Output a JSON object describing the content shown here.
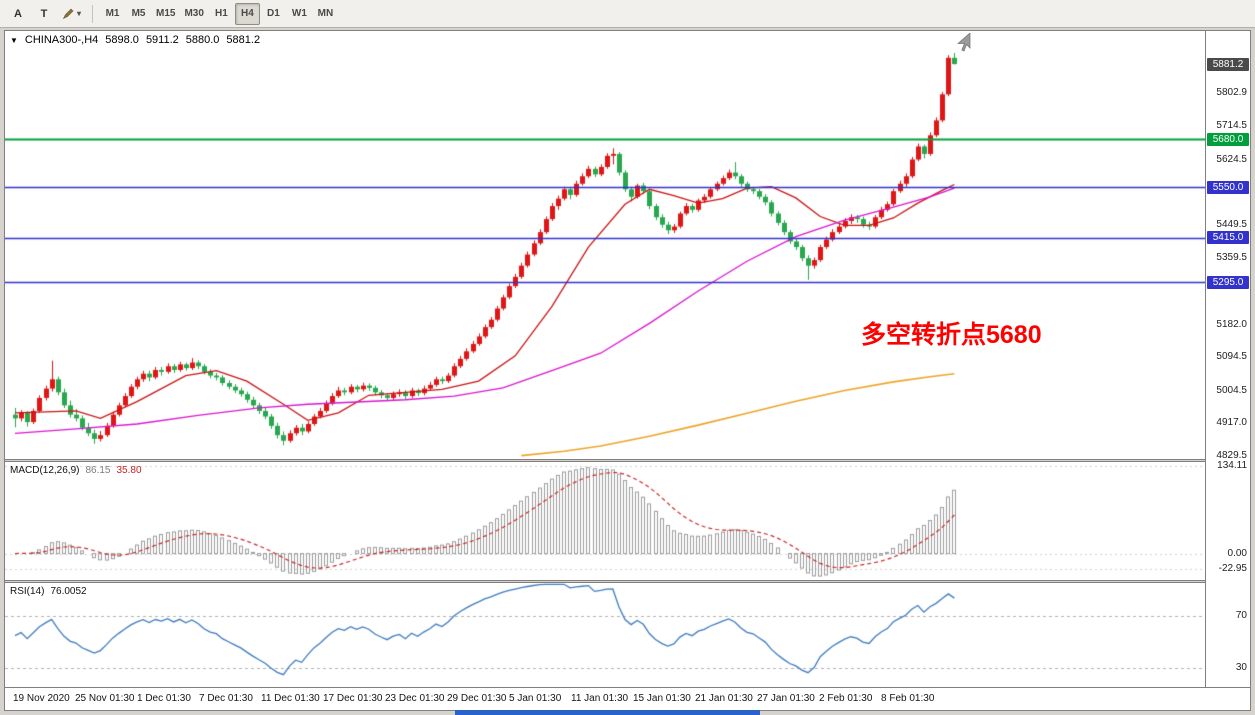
{
  "toolbar": {
    "tool_a_label": "A",
    "tool_t_label": "T",
    "caret_icon": "▾",
    "timeframes": [
      "M1",
      "M5",
      "M15",
      "M30",
      "H1",
      "H4",
      "D1",
      "W1",
      "MN"
    ],
    "active_timeframe": "H4"
  },
  "window_header": {
    "collapse_icon": "▼",
    "symbol_period": "CHINA300-,H4"
  },
  "page": {
    "taskbar_fragment_color": "#2a63c8"
  },
  "chart_data": {
    "type": "candlestick",
    "symbol": "CHINA300-",
    "timeframe": "H4",
    "ohlc_display": {
      "open": "5898.0",
      "high": "5911.2",
      "low": "5880.0",
      "close": "5881.2"
    },
    "ylim": [
      4821,
      5970
    ],
    "y_ticks": [
      "5802.9",
      "5714.5",
      "5624.5",
      "5449.5",
      "5359.5",
      "5182.0",
      "5094.5",
      "5004.5",
      "4917.0",
      "4829.5"
    ],
    "x_labels": [
      "19 Nov 2020",
      "25 Nov 01:30",
      "1 Dec 01:30",
      "7 Dec 01:30",
      "11 Dec 01:30",
      "17 Dec 01:30",
      "23 Dec 01:30",
      "29 Dec 01:30",
      "5 Jan 01:30",
      "11 Jan 01:30",
      "15 Jan 01:30",
      "21 Jan 01:30",
      "27 Jan 01:30",
      "2 Feb 01:30",
      "8 Feb 01:30"
    ],
    "colors": {
      "up": "#df1616",
      "down": "#28a74e"
    },
    "current_price": {
      "label": "5881.2",
      "value": 5881.2,
      "badge_color": "#4a4a4a"
    },
    "horizontal_levels": [
      {
        "label": "5680.0",
        "value": 5680,
        "color": "#009f3c",
        "width": 2
      },
      {
        "label": "5550.0",
        "value": 5550,
        "color": "#3333cc",
        "width": 1.4
      },
      {
        "label": "5415.0",
        "value": 5415,
        "color": "#3333cc",
        "width": 1.4
      },
      {
        "label": "5295.0",
        "value": 5295,
        "color": "#3333cc",
        "width": 1.4
      }
    ],
    "annotation": {
      "text": "多空转折点5680",
      "color": "#ff0000"
    },
    "moving_averages": [
      {
        "name": "ma-fast-red",
        "color": "#c81414",
        "width": 1.3,
        "points": [
          [
            0,
            4945
          ],
          [
            10,
            4950
          ],
          [
            14,
            4930
          ],
          [
            20,
            4975
          ],
          [
            28,
            5045
          ],
          [
            33,
            5058
          ],
          [
            38,
            5030
          ],
          [
            44,
            4968
          ],
          [
            48,
            4925
          ],
          [
            53,
            4945
          ],
          [
            58,
            4992
          ],
          [
            64,
            5000
          ],
          [
            70,
            5008
          ],
          [
            76,
            5030
          ],
          [
            82,
            5098
          ],
          [
            88,
            5230
          ],
          [
            94,
            5390
          ],
          [
            100,
            5505
          ],
          [
            104,
            5545
          ],
          [
            108,
            5528
          ],
          [
            112,
            5508
          ],
          [
            116,
            5520
          ],
          [
            120,
            5548
          ],
          [
            124,
            5552
          ],
          [
            128,
            5522
          ],
          [
            132,
            5472
          ],
          [
            136,
            5448
          ],
          [
            140,
            5448
          ],
          [
            144,
            5468
          ],
          [
            148,
            5508
          ],
          [
            152,
            5542
          ],
          [
            154,
            5558
          ]
        ]
      },
      {
        "name": "ma-mid-magenta",
        "color": "#d916d0",
        "width": 1.3,
        "points": [
          [
            0,
            4890
          ],
          [
            10,
            4902
          ],
          [
            20,
            4915
          ],
          [
            30,
            4938
          ],
          [
            40,
            4958
          ],
          [
            48,
            4968
          ],
          [
            56,
            4974
          ],
          [
            64,
            4980
          ],
          [
            72,
            4990
          ],
          [
            80,
            5012
          ],
          [
            88,
            5058
          ],
          [
            96,
            5105
          ],
          [
            104,
            5185
          ],
          [
            112,
            5272
          ],
          [
            120,
            5352
          ],
          [
            128,
            5418
          ],
          [
            136,
            5462
          ],
          [
            144,
            5497
          ],
          [
            150,
            5525
          ],
          [
            154,
            5548
          ]
        ]
      },
      {
        "name": "ma-slow-orange",
        "color": "#eda428",
        "width": 1.6,
        "points": [
          [
            83,
            4830
          ],
          [
            90,
            4842
          ],
          [
            96,
            4856
          ],
          [
            104,
            4882
          ],
          [
            112,
            4912
          ],
          [
            120,
            4944
          ],
          [
            128,
            4976
          ],
          [
            136,
            5005
          ],
          [
            144,
            5028
          ],
          [
            150,
            5042
          ],
          [
            154,
            5050
          ]
        ]
      }
    ],
    "candles": [
      [
        4940,
        4958,
        4906,
        4930
      ],
      [
        4930,
        4952,
        4922,
        4945
      ],
      [
        4945,
        4950,
        4908,
        4920
      ],
      [
        4920,
        4956,
        4915,
        4950
      ],
      [
        4950,
        4992,
        4945,
        4985
      ],
      [
        4985,
        5018,
        4978,
        5010
      ],
      [
        5010,
        5085,
        5002,
        5035
      ],
      [
        5035,
        5042,
        4992,
        5000
      ],
      [
        5000,
        5010,
        4958,
        4965
      ],
      [
        4965,
        4978,
        4932,
        4940
      ],
      [
        4940,
        4955,
        4922,
        4930
      ],
      [
        4930,
        4938,
        4898,
        4905
      ],
      [
        4905,
        4918,
        4882,
        4890
      ],
      [
        4890,
        4900,
        4862,
        4875
      ],
      [
        4875,
        4896,
        4868,
        4885
      ],
      [
        4885,
        4918,
        4880,
        4910
      ],
      [
        4910,
        4948,
        4905,
        4940
      ],
      [
        4940,
        4972,
        4935,
        4965
      ],
      [
        4965,
        4998,
        4960,
        4990
      ],
      [
        4990,
        5022,
        4985,
        5015
      ],
      [
        5015,
        5042,
        5008,
        5035
      ],
      [
        5035,
        5058,
        5028,
        5050
      ],
      [
        5050,
        5058,
        5030,
        5040
      ],
      [
        5040,
        5068,
        5035,
        5060
      ],
      [
        5060,
        5068,
        5045,
        5055
      ],
      [
        5055,
        5078,
        5050,
        5070
      ],
      [
        5070,
        5076,
        5052,
        5060
      ],
      [
        5060,
        5082,
        5055,
        5075
      ],
      [
        5075,
        5080,
        5058,
        5065
      ],
      [
        5065,
        5092,
        5060,
        5080
      ],
      [
        5080,
        5086,
        5062,
        5070
      ],
      [
        5070,
        5076,
        5048,
        5055
      ],
      [
        5055,
        5062,
        5038,
        5045
      ],
      [
        5045,
        5052,
        5032,
        5040
      ],
      [
        5040,
        5046,
        5018,
        5025
      ],
      [
        5025,
        5032,
        5008,
        5015
      ],
      [
        5015,
        5022,
        4998,
        5005
      ],
      [
        5005,
        5012,
        4988,
        4995
      ],
      [
        4995,
        5002,
        4972,
        4980
      ],
      [
        4980,
        4988,
        4958,
        4965
      ],
      [
        4965,
        4972,
        4942,
        4950
      ],
      [
        4950,
        4958,
        4928,
        4935
      ],
      [
        4935,
        4942,
        4902,
        4910
      ],
      [
        4910,
        4918,
        4876,
        4885
      ],
      [
        4885,
        4895,
        4858,
        4870
      ],
      [
        4870,
        4898,
        4865,
        4890
      ],
      [
        4890,
        4912,
        4884,
        4905
      ],
      [
        4905,
        4915,
        4885,
        4895
      ],
      [
        4895,
        4922,
        4890,
        4915
      ],
      [
        4915,
        4942,
        4910,
        4935
      ],
      [
        4935,
        4958,
        4930,
        4950
      ],
      [
        4950,
        4978,
        4945,
        4970
      ],
      [
        4970,
        4998,
        4965,
        4990
      ],
      [
        4990,
        5015,
        4985,
        5005
      ],
      [
        5005,
        5012,
        4992,
        5000
      ],
      [
        5000,
        5022,
        4995,
        5015
      ],
      [
        5015,
        5020,
        5000,
        5008
      ],
      [
        5008,
        5026,
        5002,
        5018
      ],
      [
        5018,
        5024,
        5004,
        5012
      ],
      [
        5012,
        5018,
        4992,
        5000
      ],
      [
        5000,
        5006,
        4984,
        4992
      ],
      [
        4992,
        4998,
        4976,
        4985
      ],
      [
        4985,
        5002,
        4980,
        4995
      ],
      [
        4995,
        5008,
        4988,
        5000
      ],
      [
        5000,
        5006,
        4982,
        4990
      ],
      [
        4990,
        5012,
        4985,
        5005
      ],
      [
        5005,
        5010,
        4990,
        4998
      ],
      [
        4998,
        5018,
        4992,
        5010
      ],
      [
        5010,
        5028,
        5005,
        5020
      ],
      [
        5020,
        5042,
        5015,
        5035
      ],
      [
        5035,
        5042,
        5022,
        5030
      ],
      [
        5030,
        5052,
        5025,
        5045
      ],
      [
        5045,
        5078,
        5040,
        5070
      ],
      [
        5070,
        5098,
        5065,
        5090
      ],
      [
        5090,
        5118,
        5085,
        5110
      ],
      [
        5110,
        5138,
        5105,
        5130
      ],
      [
        5130,
        5158,
        5125,
        5150
      ],
      [
        5150,
        5182,
        5145,
        5175
      ],
      [
        5175,
        5202,
        5170,
        5195
      ],
      [
        5195,
        5232,
        5190,
        5225
      ],
      [
        5225,
        5262,
        5220,
        5255
      ],
      [
        5255,
        5292,
        5250,
        5285
      ],
      [
        5285,
        5318,
        5280,
        5310
      ],
      [
        5310,
        5348,
        5305,
        5340
      ],
      [
        5340,
        5378,
        5335,
        5370
      ],
      [
        5370,
        5408,
        5365,
        5400
      ],
      [
        5400,
        5438,
        5395,
        5430
      ],
      [
        5430,
        5472,
        5425,
        5465
      ],
      [
        5465,
        5508,
        5460,
        5500
      ],
      [
        5500,
        5528,
        5490,
        5520
      ],
      [
        5520,
        5552,
        5515,
        5545
      ],
      [
        5545,
        5550,
        5518,
        5530
      ],
      [
        5530,
        5568,
        5525,
        5560
      ],
      [
        5560,
        5588,
        5555,
        5580
      ],
      [
        5580,
        5608,
        5575,
        5600
      ],
      [
        5600,
        5606,
        5578,
        5585
      ],
      [
        5585,
        5612,
        5580,
        5605
      ],
      [
        5605,
        5642,
        5600,
        5635
      ],
      [
        5635,
        5655,
        5612,
        5640
      ],
      [
        5640,
        5645,
        5582,
        5590
      ],
      [
        5590,
        5596,
        5538,
        5545
      ],
      [
        5545,
        5552,
        5512,
        5525
      ],
      [
        5525,
        5560,
        5520,
        5555
      ],
      [
        5555,
        5562,
        5532,
        5540
      ],
      [
        5540,
        5546,
        5492,
        5500
      ],
      [
        5500,
        5506,
        5462,
        5470
      ],
      [
        5470,
        5478,
        5442,
        5450
      ],
      [
        5450,
        5458,
        5425,
        5435
      ],
      [
        5435,
        5452,
        5428,
        5445
      ],
      [
        5445,
        5485,
        5440,
        5480
      ],
      [
        5480,
        5508,
        5475,
        5500
      ],
      [
        5500,
        5506,
        5482,
        5490
      ],
      [
        5490,
        5520,
        5485,
        5515
      ],
      [
        5515,
        5532,
        5508,
        5525
      ],
      [
        5525,
        5550,
        5520,
        5545
      ],
      [
        5545,
        5566,
        5540,
        5560
      ],
      [
        5560,
        5582,
        5555,
        5575
      ],
      [
        5575,
        5598,
        5570,
        5590
      ],
      [
        5590,
        5618,
        5572,
        5580
      ],
      [
        5580,
        5586,
        5552,
        5560
      ],
      [
        5560,
        5566,
        5538,
        5545
      ],
      [
        5545,
        5552,
        5532,
        5540
      ],
      [
        5540,
        5546,
        5518,
        5525
      ],
      [
        5525,
        5532,
        5502,
        5510
      ],
      [
        5510,
        5516,
        5472,
        5480
      ],
      [
        5480,
        5486,
        5448,
        5455
      ],
      [
        5455,
        5462,
        5422,
        5430
      ],
      [
        5430,
        5436,
        5398,
        5405
      ],
      [
        5405,
        5412,
        5382,
        5390
      ],
      [
        5390,
        5396,
        5352,
        5360
      ],
      [
        5360,
        5368,
        5302,
        5340
      ],
      [
        5340,
        5362,
        5332,
        5355
      ],
      [
        5355,
        5396,
        5350,
        5390
      ],
      [
        5390,
        5418,
        5385,
        5410
      ],
      [
        5410,
        5438,
        5405,
        5430
      ],
      [
        5430,
        5452,
        5425,
        5445
      ],
      [
        5445,
        5468,
        5440,
        5460
      ],
      [
        5460,
        5478,
        5452,
        5470
      ],
      [
        5470,
        5476,
        5455,
        5465
      ],
      [
        5465,
        5472,
        5442,
        5450
      ],
      [
        5450,
        5458,
        5436,
        5445
      ],
      [
        5445,
        5476,
        5440,
        5470
      ],
      [
        5470,
        5498,
        5465,
        5490
      ],
      [
        5490,
        5512,
        5485,
        5505
      ],
      [
        5505,
        5546,
        5500,
        5540
      ],
      [
        5540,
        5568,
        5535,
        5560
      ],
      [
        5560,
        5588,
        5552,
        5580
      ],
      [
        5580,
        5632,
        5575,
        5625
      ],
      [
        5625,
        5668,
        5620,
        5660
      ],
      [
        5660,
        5665,
        5628,
        5640
      ],
      [
        5640,
        5698,
        5635,
        5690
      ],
      [
        5690,
        5738,
        5685,
        5730
      ],
      [
        5730,
        5806,
        5725,
        5800
      ],
      [
        5800,
        5905,
        5795,
        5898
      ],
      [
        5898,
        5911.2,
        5880,
        5881.2
      ]
    ],
    "indicators": {
      "macd": {
        "name": "MACD(12,26,9)",
        "value": "86.15",
        "signal": "35.80",
        "params": [
          12,
          26,
          9
        ],
        "axis_labels": [
          "134.11",
          "0.00",
          "-22.95"
        ],
        "axis_values": [
          134.11,
          0,
          -22.95
        ],
        "histogram_color": "#9c9c9c",
        "signal_color": "#cc2a2a"
      },
      "rsi": {
        "name": "RSI(14)",
        "value": "76.0052",
        "period": 14,
        "levels": [
          70,
          30
        ],
        "line_color": "#3e7bbf"
      }
    }
  }
}
